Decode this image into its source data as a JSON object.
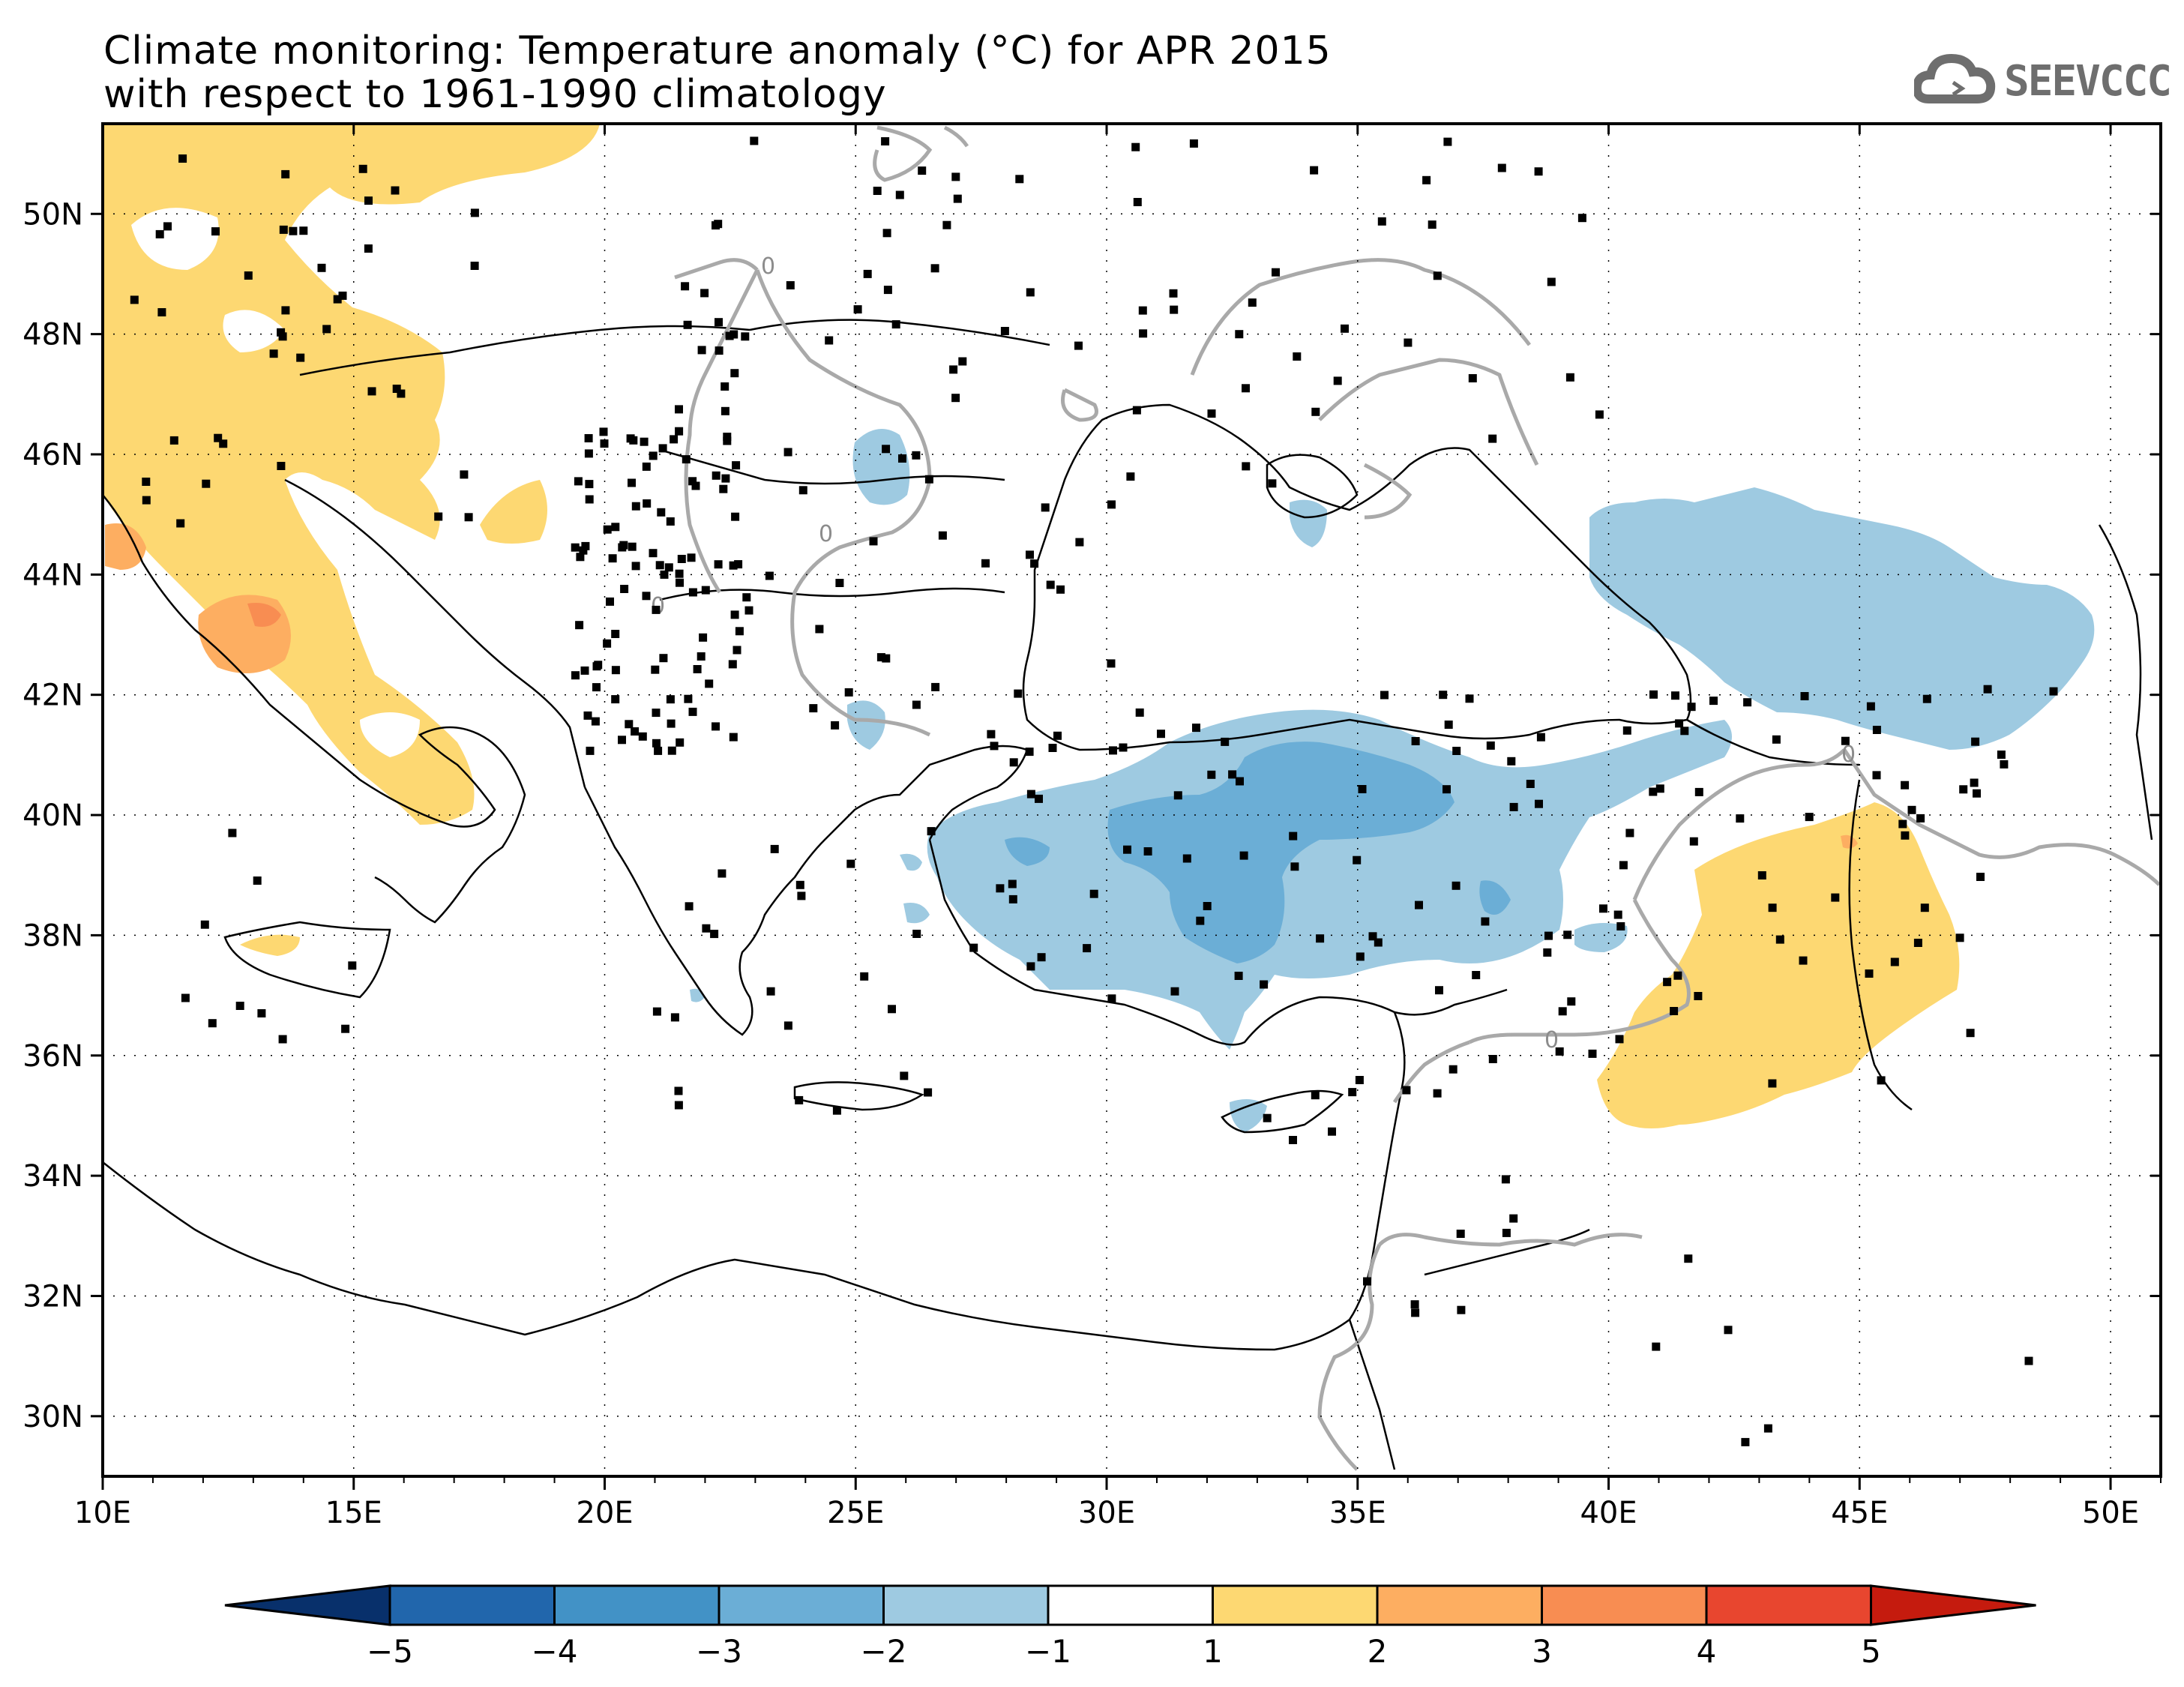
{
  "title_line1": "Climate monitoring: Temperature anomaly (°C) for APR 2015",
  "title_line2": "with respect to 1961-1990 climatology",
  "logo_text": "SEEVCCC",
  "map": {
    "lat_labels": [
      "50N",
      "48N",
      "46N",
      "44N",
      "42N",
      "40N",
      "38N",
      "36N",
      "34N",
      "32N",
      "30N"
    ],
    "lon_labels": [
      "10E",
      "15E",
      "20E",
      "25E",
      "30E",
      "35E",
      "40E",
      "45E",
      "50E"
    ],
    "contour_label": "0"
  },
  "colorbar": {
    "labels": [
      "-5",
      "-4",
      "-3",
      "-2",
      "-1",
      "1",
      "2",
      "3",
      "4",
      "5"
    ],
    "colors": [
      "#08306b",
      "#2166ac",
      "#4292c6",
      "#6baed6",
      "#9ecae1",
      "#ffffff",
      "#fdd872",
      "#fdae61",
      "#f88d52",
      "#e8462f",
      "#c51b0e"
    ]
  }
}
